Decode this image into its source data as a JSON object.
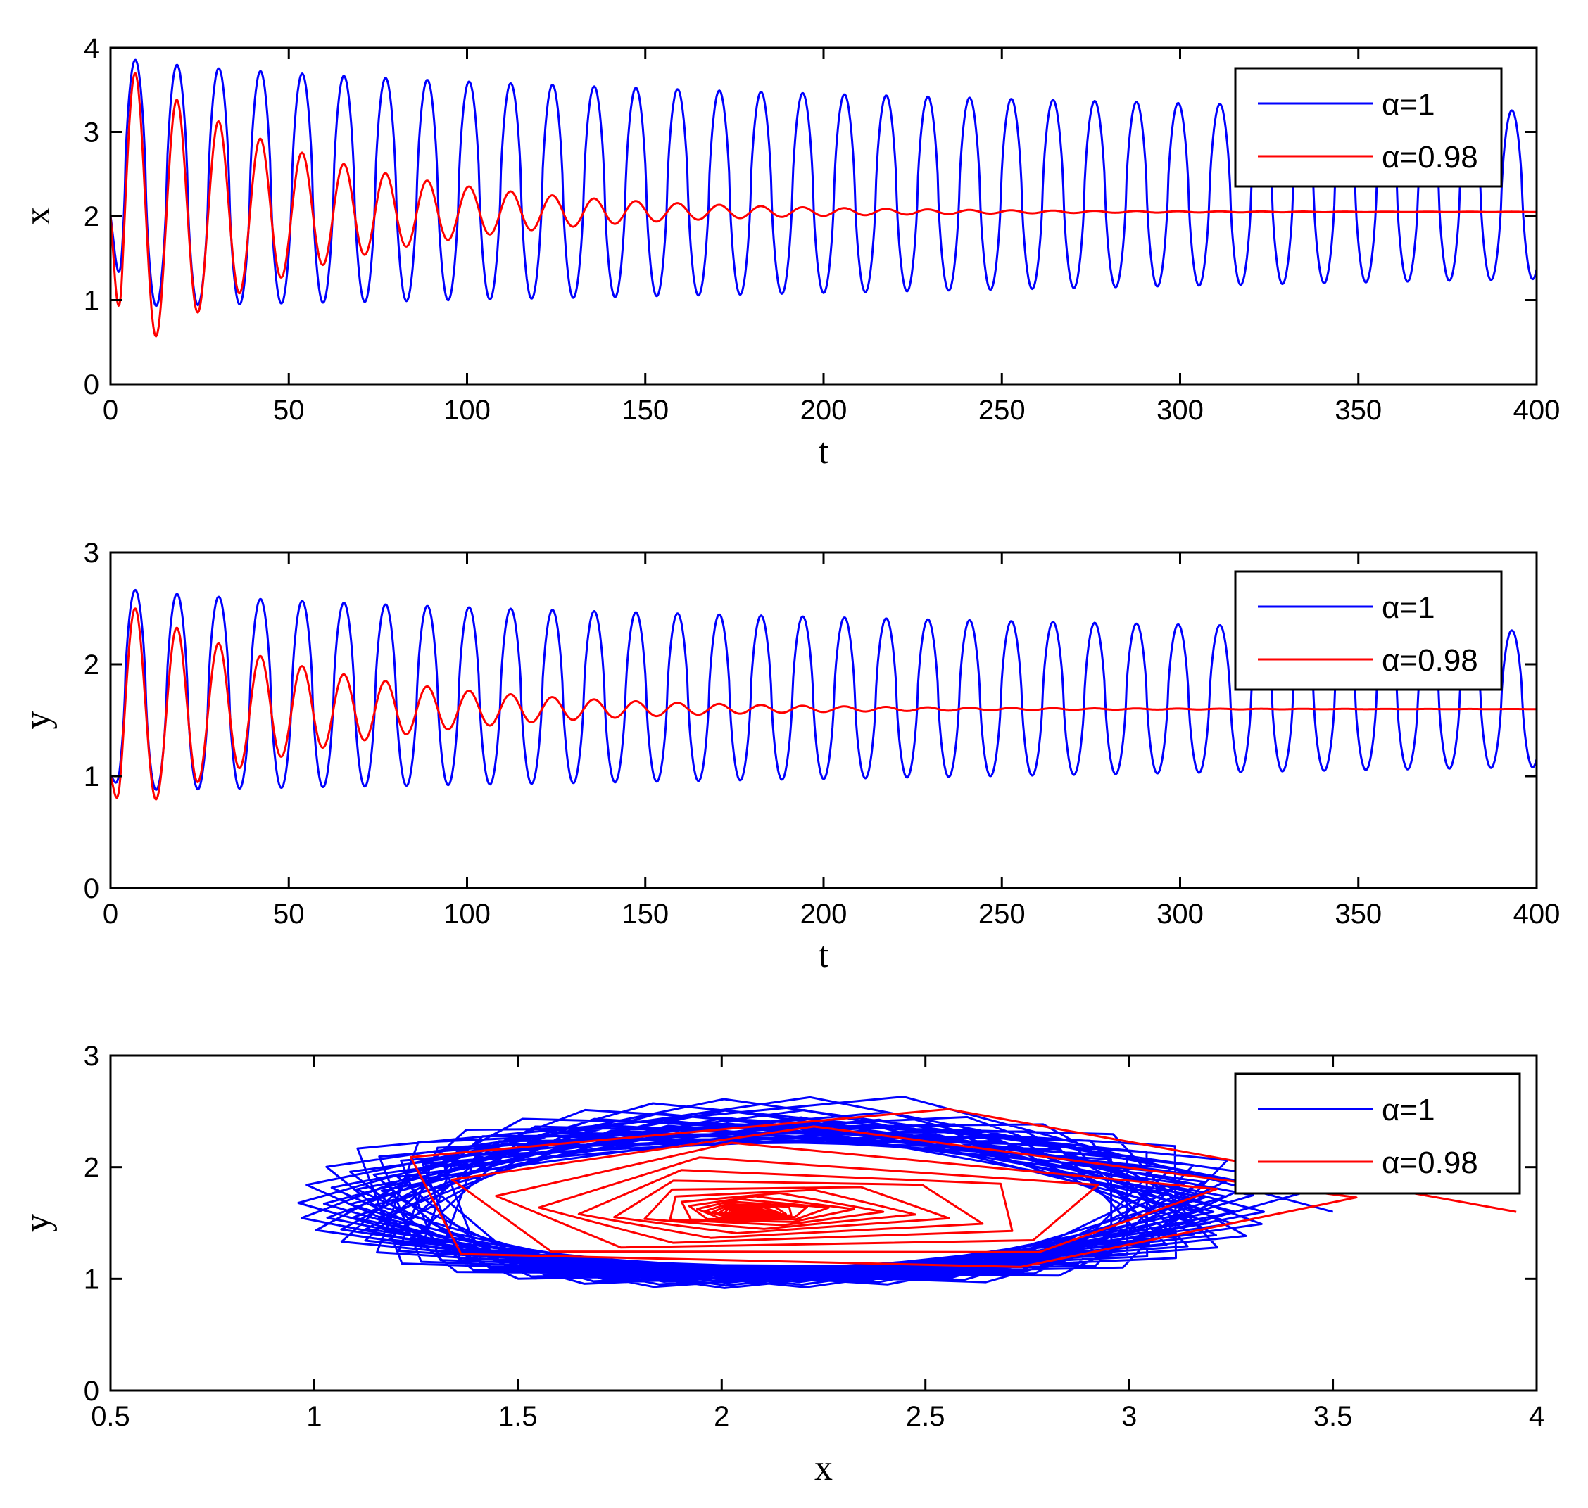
{
  "colors": {
    "series_alpha1": "#0000ff",
    "series_alpha098": "#ff0000",
    "axes": "#000000"
  },
  "chart_data": [
    {
      "type": "line",
      "panel": "top",
      "xlabel": "t",
      "ylabel": "x",
      "xlim": [
        0,
        400
      ],
      "ylim": [
        0,
        4
      ],
      "xticks": [
        "0",
        "50",
        "100",
        "150",
        "200",
        "250",
        "300",
        "350",
        "400"
      ],
      "yticks": [
        "0",
        "1",
        "2",
        "3",
        "4"
      ],
      "legend": {
        "position": "top-right",
        "entries": [
          "α=1",
          "α=0.98"
        ]
      },
      "series": [
        {
          "name": "α=1",
          "description": "sustained oscillation",
          "start": 2.0,
          "first_peak": 3.95,
          "last_peak": 3.25,
          "first_trough": 0.92,
          "last_trough": 1.25,
          "period": 11.7
        },
        {
          "name": "α=0.98",
          "description": "damped oscillation",
          "start": 2.0,
          "first_peak": 3.92,
          "settle_value": 2.05,
          "period": 11.7
        }
      ]
    },
    {
      "type": "line",
      "panel": "middle",
      "xlabel": "t",
      "ylabel": "y",
      "xlim": [
        0,
        400
      ],
      "ylim": [
        0,
        3
      ],
      "xticks": [
        "0",
        "50",
        "100",
        "150",
        "200",
        "250",
        "300",
        "350",
        "400"
      ],
      "yticks": [
        "0",
        "1",
        "2",
        "3"
      ],
      "legend": {
        "position": "top-right",
        "entries": [
          "α=1",
          "α=0.98"
        ]
      },
      "series": [
        {
          "name": "α=1",
          "description": "sustained oscillation",
          "start": 1.0,
          "first_peak": 2.72,
          "last_peak": 2.3,
          "first_trough": 0.87,
          "last_trough": 1.08,
          "period": 11.7
        },
        {
          "name": "α=0.98",
          "description": "damped oscillation",
          "start": 1.0,
          "first_peak": 2.62,
          "settle_value": 1.6,
          "period": 11.7
        }
      ]
    },
    {
      "type": "line",
      "panel": "bottom",
      "xlabel": "x",
      "ylabel": "y",
      "xlim": [
        0.5,
        4
      ],
      "ylim": [
        0,
        3
      ],
      "xticks": [
        "0.5",
        "1",
        "1.5",
        "2",
        "2.5",
        "3",
        "3.5",
        "4"
      ],
      "yticks": [
        "0",
        "1",
        "2",
        "3"
      ],
      "legend": {
        "position": "top-right",
        "entries": [
          "α=1",
          "α=0.98"
        ]
      },
      "series": [
        {
          "name": "α=1",
          "description": "phase portrait converging to limit cycle",
          "x_range": [
            0.92,
            3.95
          ],
          "y_range": [
            0.87,
            2.72
          ]
        },
        {
          "name": "α=0.98",
          "description": "phase portrait spiraling into equilibrium",
          "equilibrium": [
            2.05,
            1.6
          ]
        }
      ]
    }
  ]
}
